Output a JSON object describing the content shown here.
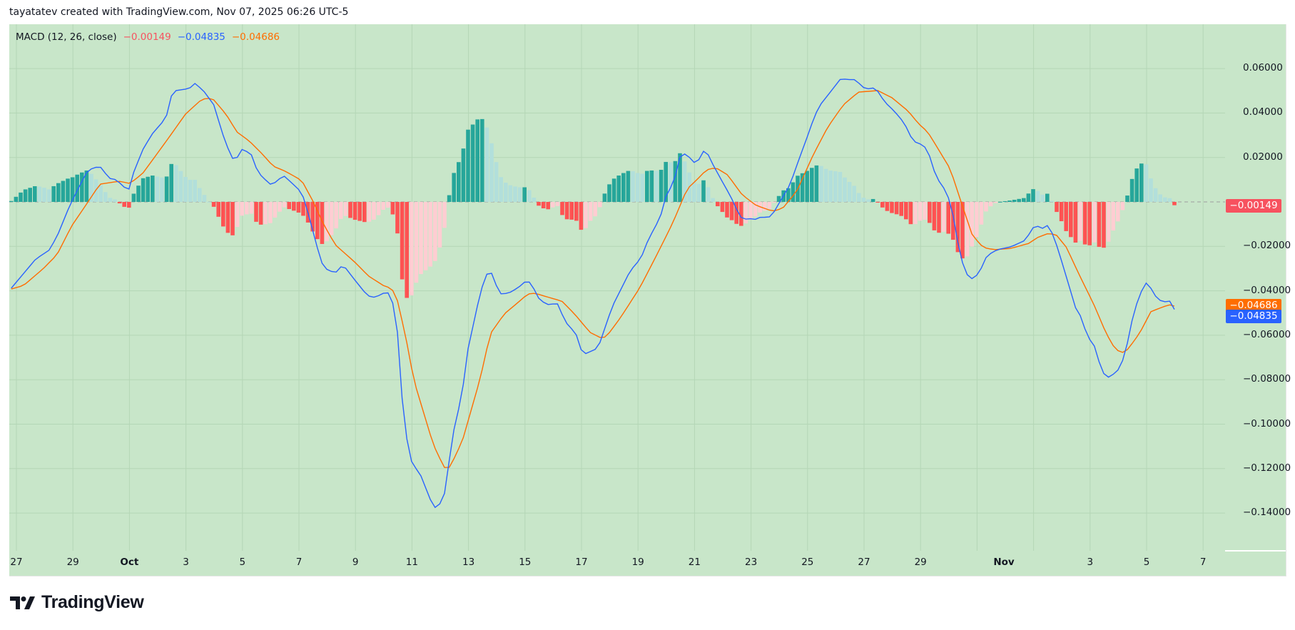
{
  "header": {
    "attribution": "tayatatev created with TradingView.com, Nov 07, 2025 06:26 UTC-5"
  },
  "legend": {
    "indicator": "MACD (12, 26, close)",
    "histogram_value": "−0.00149",
    "macd_value": "−0.04835",
    "signal_value": "−0.04686"
  },
  "badges": {
    "histogram": "−0.00149",
    "signal": "−0.04686",
    "macd": "−0.04835"
  },
  "colors": {
    "background": "#c8e6c9",
    "macd_line": "#2962ff",
    "signal_line": "#ff6d00",
    "hist_pos_rising": "#26a69a",
    "hist_pos_falling": "#b2dfdb",
    "hist_neg_falling": "#ff5252",
    "hist_neg_rising": "#ffcdd2",
    "legend_hist": "#f7525f",
    "grid": "#b4d6b6"
  },
  "price_axis": {
    "ticks": [
      {
        "value": 0.06,
        "label": "0.06000"
      },
      {
        "value": 0.04,
        "label": "0.04000"
      },
      {
        "value": 0.02,
        "label": "0.02000"
      },
      {
        "value": -0.02,
        "label": "−0.02000"
      },
      {
        "value": -0.04,
        "label": "−0.04000"
      },
      {
        "value": -0.06,
        "label": "−0.06000"
      },
      {
        "value": -0.08,
        "label": "−0.08000"
      },
      {
        "value": -0.1,
        "label": "−0.10000"
      },
      {
        "value": -0.12,
        "label": "−0.12000"
      },
      {
        "value": -0.14,
        "label": "−0.14000"
      }
    ]
  },
  "time_axis": {
    "labels": [
      {
        "label": "27",
        "bold": false
      },
      {
        "label": "29",
        "bold": false
      },
      {
        "label": "Oct",
        "bold": true
      },
      {
        "label": "3",
        "bold": false
      },
      {
        "label": "5",
        "bold": false
      },
      {
        "label": "7",
        "bold": false
      },
      {
        "label": "9",
        "bold": false
      },
      {
        "label": "11",
        "bold": false
      },
      {
        "label": "13",
        "bold": false
      },
      {
        "label": "15",
        "bold": false
      },
      {
        "label": "17",
        "bold": false
      },
      {
        "label": "19",
        "bold": false
      },
      {
        "label": "21",
        "bold": false
      },
      {
        "label": "23",
        "bold": false
      },
      {
        "label": "25",
        "bold": false
      },
      {
        "label": "27",
        "bold": false
      },
      {
        "label": "29",
        "bold": false
      },
      {
        "label": "Nov",
        "bold": true,
        "offset_days": 2.95
      },
      {
        "label": "3",
        "bold": false
      },
      {
        "label": "5",
        "bold": false
      },
      {
        "label": "7",
        "bold": false
      }
    ]
  },
  "footer": {
    "brand": "TradingView"
  },
  "chart_data": {
    "type": "line",
    "title": "MACD (12, 26, close)",
    "subtitle": "4-hour bars, Sep 27 – Nov 7, 2025",
    "xlabel": "",
    "ylabel": "",
    "ylim": [
      -0.155,
      0.072
    ],
    "grid": true,
    "legend_position": "top-left",
    "x_tick_labels": [
      "27",
      "29",
      "Oct",
      "3",
      "5",
      "7",
      "9",
      "11",
      "13",
      "15",
      "17",
      "19",
      "21",
      "23",
      "25",
      "27",
      "29",
      "Nov",
      "3",
      "5",
      "7"
    ],
    "y_tick_labels": [
      "0.06000",
      "0.04000",
      "0.02000",
      "−0.02000",
      "−0.04000",
      "−0.06000",
      "−0.08000",
      "−0.10000",
      "−0.12000",
      "−0.14000"
    ],
    "bars_count": 248,
    "bars_per_day": 6,
    "last_values": {
      "histogram": -0.00149,
      "macd": -0.04835,
      "signal": -0.04686
    },
    "series": [
      {
        "name": "MACD",
        "color": "#2962ff",
        "knots": [
          [
            0,
            -0.0388
          ],
          [
            5.2,
            -0.0257
          ],
          [
            8.2,
            -0.0215
          ],
          [
            10,
            -0.0141
          ],
          [
            12.3,
            -0.0022
          ],
          [
            14.3,
            0.0064
          ],
          [
            16.3,
            0.0144
          ],
          [
            18.8,
            0.0161
          ],
          [
            20.8,
            0.0106
          ],
          [
            22.3,
            0.01
          ],
          [
            24.4,
            0.0058
          ],
          [
            25.2,
            0.0058
          ],
          [
            25.9,
            0.0128
          ],
          [
            27.9,
            0.0234
          ],
          [
            29.9,
            0.0305
          ],
          [
            32.9,
            0.0379
          ],
          [
            33.7,
            0.0469
          ],
          [
            35,
            0.0501
          ],
          [
            37.8,
            0.051
          ],
          [
            39,
            0.0533
          ],
          [
            40.8,
            0.0501
          ],
          [
            43,
            0.0437
          ],
          [
            44.9,
            0.0305
          ],
          [
            46.8,
            0.0196
          ],
          [
            47.9,
            0.0196
          ],
          [
            48.8,
            0.0238
          ],
          [
            50.9,
            0.0218
          ],
          [
            51.8,
            0.0161
          ],
          [
            52.9,
            0.0122
          ],
          [
            54.9,
            0.008
          ],
          [
            55.6,
            0.008
          ],
          [
            57.8,
            0.0119
          ],
          [
            59.7,
            0.0083
          ],
          [
            61.7,
            0.0042
          ],
          [
            62.8,
            -0.0032
          ],
          [
            65.8,
            -0.027
          ],
          [
            66.9,
            -0.0302
          ],
          [
            68.8,
            -0.0321
          ],
          [
            69.9,
            -0.0292
          ],
          [
            70.8,
            -0.0292
          ],
          [
            72.9,
            -0.035
          ],
          [
            75.6,
            -0.0421
          ],
          [
            76.8,
            -0.043
          ],
          [
            78.7,
            -0.0417
          ],
          [
            79.7,
            -0.0398
          ],
          [
            80.8,
            -0.044
          ],
          [
            81.8,
            -0.0514
          ],
          [
            82.6,
            -0.0803
          ],
          [
            83.7,
            -0.1027
          ],
          [
            84.7,
            -0.1156
          ],
          [
            85.8,
            -0.1197
          ],
          [
            86.7,
            -0.1217
          ],
          [
            89.7,
            -0.1377
          ],
          [
            90.5,
            -0.1371
          ],
          [
            91.8,
            -0.1339
          ],
          [
            92.8,
            -0.1201
          ],
          [
            93.5,
            -0.1072
          ],
          [
            95.8,
            -0.0857
          ],
          [
            96.7,
            -0.069
          ],
          [
            99.6,
            -0.0408
          ],
          [
            100.8,
            -0.0331
          ],
          [
            101.7,
            -0.0305
          ],
          [
            103.7,
            -0.0414
          ],
          [
            105.6,
            -0.0411
          ],
          [
            107.7,
            -0.0385
          ],
          [
            109.6,
            -0.035
          ],
          [
            110.8,
            -0.0382
          ],
          [
            111.7,
            -0.0427
          ],
          [
            112.8,
            -0.0449
          ],
          [
            114.7,
            -0.0469
          ],
          [
            115.6,
            -0.044
          ],
          [
            117.6,
            -0.0536
          ],
          [
            118.8,
            -0.0571
          ],
          [
            119.7,
            -0.0571
          ],
          [
            120.6,
            -0.0655
          ],
          [
            121.8,
            -0.0684
          ],
          [
            124.6,
            -0.0658
          ],
          [
            127.6,
            -0.0472
          ],
          [
            131.4,
            -0.0311
          ],
          [
            133.7,
            -0.0254
          ],
          [
            135.5,
            -0.0157
          ],
          [
            136.5,
            -0.0125
          ],
          [
            138,
            -0.0055
          ],
          [
            138.9,
            0.0019
          ],
          [
            140.8,
            0.0096
          ],
          [
            141.8,
            0.0196
          ],
          [
            142.6,
            0.0218
          ],
          [
            143.5,
            0.0212
          ],
          [
            145.6,
            0.0164
          ],
          [
            146.5,
            0.0222
          ],
          [
            147.5,
            0.0234
          ],
          [
            149.1,
            0.0164
          ],
          [
            151.7,
            0.0064
          ],
          [
            152.6,
            0.0032
          ],
          [
            154.7,
            -0.0064
          ],
          [
            155.5,
            -0.008
          ],
          [
            156.7,
            -0.0074
          ],
          [
            157.8,
            -0.008
          ],
          [
            159.3,
            -0.0067
          ],
          [
            160.8,
            -0.0071
          ],
          [
            161.7,
            -0.0055
          ],
          [
            163.2,
            0.0
          ],
          [
            165.3,
            0.0074
          ],
          [
            167.3,
            0.0193
          ],
          [
            169.3,
            0.0308
          ],
          [
            170.6,
            0.0388
          ],
          [
            171.8,
            0.0437
          ],
          [
            174.4,
            0.0507
          ],
          [
            176.4,
            0.0562
          ],
          [
            177.4,
            0.0546
          ],
          [
            178.7,
            0.0555
          ],
          [
            179.9,
            0.0536
          ],
          [
            181.4,
            0.0507
          ],
          [
            183.5,
            0.0514
          ],
          [
            185.5,
            0.0449
          ],
          [
            187.4,
            0.0411
          ],
          [
            189.6,
            0.0356
          ],
          [
            191.5,
            0.0273
          ],
          [
            193.5,
            0.0257
          ],
          [
            194.6,
            0.0234
          ],
          [
            196.4,
            0.0112
          ],
          [
            198.4,
            0.0051
          ],
          [
            199.6,
            -0.0013
          ],
          [
            201.1,
            -0.0193
          ],
          [
            202.5,
            -0.0318
          ],
          [
            204.1,
            -0.0347
          ],
          [
            205.5,
            -0.0321
          ],
          [
            207.2,
            -0.0241
          ],
          [
            209.4,
            -0.0215
          ],
          [
            212.3,
            -0.0202
          ],
          [
            215.3,
            -0.0173
          ],
          [
            217.3,
            -0.0106
          ],
          [
            218.4,
            -0.0112
          ],
          [
            219.3,
            -0.0122
          ],
          [
            220.3,
            -0.01
          ],
          [
            221.9,
            -0.0189
          ],
          [
            223.1,
            -0.027
          ],
          [
            226.4,
            -0.0504
          ],
          [
            227.2,
            -0.0514
          ],
          [
            228.4,
            -0.06
          ],
          [
            230.2,
            -0.0655
          ],
          [
            231.4,
            -0.0751
          ],
          [
            232.5,
            -0.079
          ],
          [
            233.4,
            -0.0787
          ],
          [
            235.3,
            -0.0751
          ],
          [
            236.5,
            -0.0687
          ],
          [
            238.2,
            -0.0514
          ],
          [
            239.4,
            -0.043
          ],
          [
            240.5,
            -0.0379
          ],
          [
            241.2,
            -0.036
          ],
          [
            243,
            -0.0424
          ],
          [
            244.3,
            -0.0449
          ],
          [
            245.3,
            -0.0449
          ],
          [
            246.2,
            -0.0446
          ],
          [
            247,
            -0.04835
          ]
        ]
      },
      {
        "name": "Signal",
        "color": "#ff6d00",
        "knots": [
          [
            0,
            -0.0392
          ],
          [
            2.6,
            -0.0376
          ],
          [
            6.7,
            -0.0302
          ],
          [
            9.7,
            -0.0238
          ],
          [
            12.8,
            -0.0109
          ],
          [
            16.3,
            0.0
          ],
          [
            18.8,
            0.008
          ],
          [
            22.9,
            0.0093
          ],
          [
            25.2,
            0.0083
          ],
          [
            27.9,
            0.0128
          ],
          [
            32.9,
            0.0273
          ],
          [
            37,
            0.0395
          ],
          [
            40,
            0.0453
          ],
          [
            41.5,
            0.0469
          ],
          [
            43,
            0.0459
          ],
          [
            45.6,
            0.0395
          ],
          [
            47.9,
            0.0315
          ],
          [
            50.6,
            0.0273
          ],
          [
            53.2,
            0.0218
          ],
          [
            55.6,
            0.0161
          ],
          [
            58.2,
            0.0138
          ],
          [
            61.7,
            0.0096
          ],
          [
            64.3,
            -0.0006
          ],
          [
            66.2,
            -0.0096
          ],
          [
            68.8,
            -0.0193
          ],
          [
            72.9,
            -0.027
          ],
          [
            75.9,
            -0.0334
          ],
          [
            79,
            -0.0376
          ],
          [
            80.6,
            -0.0388
          ],
          [
            81.7,
            -0.0417
          ],
          [
            83.7,
            -0.06
          ],
          [
            85.5,
            -0.0803
          ],
          [
            89.6,
            -0.1091
          ],
          [
            91.9,
            -0.1194
          ],
          [
            92.8,
            -0.1201
          ],
          [
            93.5,
            -0.1178
          ],
          [
            95.8,
            -0.1075
          ],
          [
            99.6,
            -0.0793
          ],
          [
            101.7,
            -0.0594
          ],
          [
            104.7,
            -0.0504
          ],
          [
            107.8,
            -0.0449
          ],
          [
            109.7,
            -0.0414
          ],
          [
            111.2,
            -0.0411
          ],
          [
            114.7,
            -0.0433
          ],
          [
            116.9,
            -0.0446
          ],
          [
            119.6,
            -0.0504
          ],
          [
            122.9,
            -0.0587
          ],
          [
            125.6,
            -0.0616
          ],
          [
            126.8,
            -0.0594
          ],
          [
            129.4,
            -0.052
          ],
          [
            133.5,
            -0.0385
          ],
          [
            137.4,
            -0.0225
          ],
          [
            140.5,
            -0.0093
          ],
          [
            143.5,
            0.0058
          ],
          [
            145.6,
            0.01
          ],
          [
            147.6,
            0.0144
          ],
          [
            149.6,
            0.0154
          ],
          [
            152.1,
            0.0122
          ],
          [
            155.2,
            0.0032
          ],
          [
            158.2,
            -0.0016
          ],
          [
            161.7,
            -0.0042
          ],
          [
            163.8,
            -0.0029
          ],
          [
            166.8,
            0.0048
          ],
          [
            170.3,
            0.0212
          ],
          [
            173.4,
            0.0337
          ],
          [
            176.7,
            0.0437
          ],
          [
            179.9,
            0.0494
          ],
          [
            184,
            0.0501
          ],
          [
            187,
            0.0469
          ],
          [
            190.5,
            0.0408
          ],
          [
            192.6,
            0.0353
          ],
          [
            194.6,
            0.0315
          ],
          [
            196.5,
            0.025
          ],
          [
            199.4,
            0.0148
          ],
          [
            201.9,
            -0.0013
          ],
          [
            204.1,
            -0.0151
          ],
          [
            206.4,
            -0.0205
          ],
          [
            208.7,
            -0.0215
          ],
          [
            212.3,
            -0.0209
          ],
          [
            216.2,
            -0.0186
          ],
          [
            217.8,
            -0.0161
          ],
          [
            220.3,
            -0.0141
          ],
          [
            221.9,
            -0.0148
          ],
          [
            224.1,
            -0.0205
          ],
          [
            226.4,
            -0.0311
          ],
          [
            229.9,
            -0.0462
          ],
          [
            232.5,
            -0.0591
          ],
          [
            234.3,
            -0.0658
          ],
          [
            235.5,
            -0.0677
          ],
          [
            236.5,
            -0.0677
          ],
          [
            237.4,
            -0.0655
          ],
          [
            239.6,
            -0.0591
          ],
          [
            242,
            -0.0494
          ],
          [
            244.6,
            -0.0472
          ],
          [
            246.2,
            -0.0462
          ],
          [
            247,
            -0.04686
          ]
        ]
      },
      {
        "name": "Histogram",
        "type": "bar",
        "definition": "MACD - Signal",
        "colors": [
          "#26a69a",
          "#b2dfdb",
          "#ffcdd2",
          "#ff5252"
        ]
      }
    ]
  }
}
